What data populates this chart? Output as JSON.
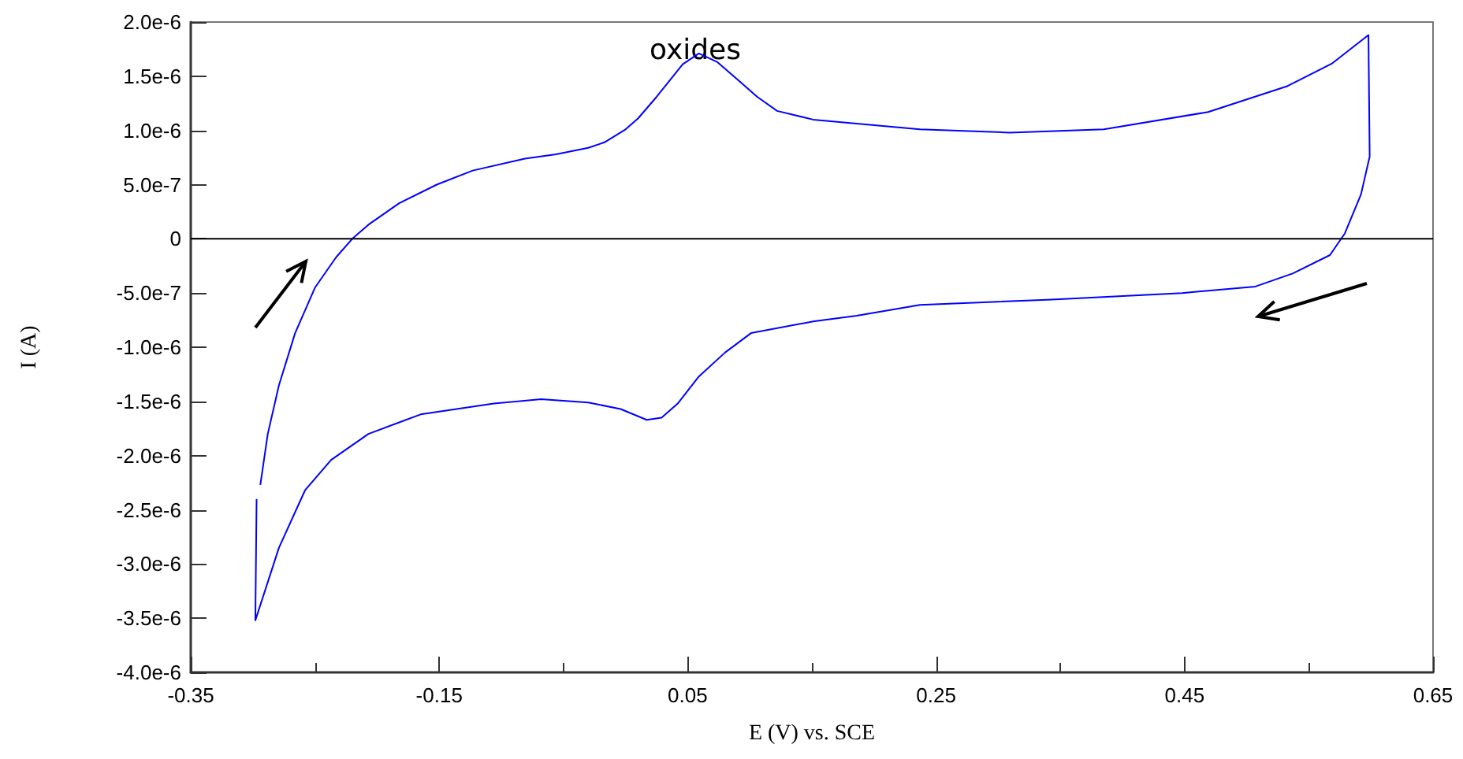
{
  "chart_data": {
    "type": "line",
    "xlabel": "E (V) vs. SCE",
    "ylabel": "I (A)",
    "annotations": [
      "oxides"
    ],
    "series": [
      {
        "color": "#0000ff",
        "x": [
          -0.294,
          -0.288,
          -0.279,
          -0.266,
          -0.25,
          -0.233,
          -0.22,
          -0.207,
          -0.182,
          -0.152,
          -0.123,
          -0.081,
          -0.056,
          -0.03,
          -0.017,
          0.0,
          0.01,
          0.025,
          0.046,
          0.059,
          0.074,
          0.089,
          0.106,
          0.122,
          0.151,
          0.237,
          0.309,
          0.385,
          0.469,
          0.533,
          0.569,
          0.598,
          0.599,
          0.592,
          0.579,
          0.567,
          0.537,
          0.507,
          0.448,
          0.343,
          0.237,
          0.186,
          0.152,
          0.101,
          0.08,
          0.059,
          0.042,
          0.029,
          0.017,
          -0.004,
          -0.03,
          -0.068,
          -0.106,
          -0.165,
          -0.207,
          -0.237,
          -0.258,
          -0.279,
          -0.298,
          -0.297
        ],
        "values": [
          -2.27e-06,
          -1.8e-06,
          -1.35e-06,
          -8.7e-07,
          -4.5e-07,
          -1.7e-07,
          0,
          1.3e-07,
          3.3e-07,
          5e-07,
          6.3e-07,
          7.4e-07,
          7.8e-07,
          8.4e-07,
          8.9e-07,
          1.01e-06,
          1.11e-06,
          1.31e-06,
          1.61e-06,
          1.71e-06,
          1.63e-06,
          1.48e-06,
          1.31e-06,
          1.18e-06,
          1.1e-06,
          1.01e-06,
          9.8e-07,
          1.01e-06,
          1.17e-06,
          1.41e-06,
          1.62e-06,
          1.88e-06,
          7.6e-07,
          4.1e-07,
          5e-08,
          -1.5e-07,
          -3.2e-07,
          -4.4e-07,
          -5e-07,
          -5.6e-07,
          -6.1e-07,
          -7.1e-07,
          -7.6e-07,
          -8.7e-07,
          -1.05e-06,
          -1.27e-06,
          -1.52e-06,
          -1.65e-06,
          -1.67e-06,
          -1.57e-06,
          -1.51e-06,
          -1.48e-06,
          -1.52e-06,
          -1.62e-06,
          -1.8e-06,
          -2.04e-06,
          -2.32e-06,
          -2.85e-06,
          -3.52e-06,
          -2.4e-06
        ]
      }
    ],
    "xlim": [
      -0.35,
      0.65
    ],
    "xticks": [
      -0.35,
      {
        "value": -0.25,
        "label": null
      },
      -0.15,
      {
        "value": -0.05,
        "label": null
      },
      0.05,
      {
        "value": 0.15,
        "label": null
      },
      0.25,
      {
        "value": 0.35,
        "label": null
      },
      0.45,
      {
        "value": 0.55,
        "label": null
      },
      0.65
    ],
    "ylim": [
      -4e-06,
      2e-06
    ],
    "yticks": [
      {
        "value": -4e-06,
        "label": "-4.0e-6"
      },
      {
        "value": -3.5e-06,
        "label": "-3.5e-6"
      },
      {
        "value": -3e-06,
        "label": "-3.0e-6"
      },
      {
        "value": -2.5e-06,
        "label": "-2.5e-6"
      },
      {
        "value": -2e-06,
        "label": "-2.0e-6"
      },
      {
        "value": -1.5e-06,
        "label": "-1.5e-6"
      },
      {
        "value": -1e-06,
        "label": "-1.0e-6"
      },
      {
        "value": -5e-07,
        "label": "-5.0e-7"
      },
      0,
      {
        "value": 5e-07,
        "label": "5.0e-7"
      },
      {
        "value": 1e-06,
        "label": "1.0e-6"
      },
      {
        "value": 1.5e-06,
        "label": "1.5e-6"
      },
      {
        "value": 2e-06,
        "label": "2.0e-6"
      }
    ],
    "ref_lines": [
      {
        "axis": "y",
        "value": 0,
        "color": "#000000"
      }
    ],
    "grid": false,
    "marker": "none",
    "line_style": "solid"
  }
}
